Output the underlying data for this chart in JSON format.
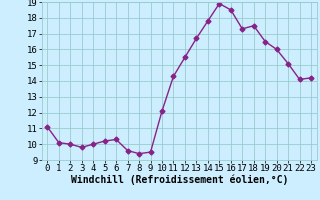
{
  "x": [
    0,
    1,
    2,
    3,
    4,
    5,
    6,
    7,
    8,
    9,
    10,
    11,
    12,
    13,
    14,
    15,
    16,
    17,
    18,
    19,
    20,
    21,
    22,
    23
  ],
  "y": [
    11.1,
    10.1,
    10.0,
    9.8,
    10.0,
    10.2,
    10.3,
    9.6,
    9.4,
    9.5,
    12.1,
    14.3,
    15.5,
    16.7,
    17.8,
    18.9,
    18.5,
    17.3,
    17.5,
    16.5,
    16.0,
    15.1,
    14.1,
    14.2
  ],
  "line_color": "#882288",
  "marker": "D",
  "marker_size": 2.5,
  "bg_color": "#cceeff",
  "grid_color": "#99cccc",
  "xlabel": "Windchill (Refroidissement éolien,°C)",
  "xlabel_fontsize": 7,
  "ylim": [
    9,
    19
  ],
  "xlim_min": -0.5,
  "xlim_max": 23.5,
  "yticks": [
    9,
    10,
    11,
    12,
    13,
    14,
    15,
    16,
    17,
    18,
    19
  ],
  "xticks": [
    0,
    1,
    2,
    3,
    4,
    5,
    6,
    7,
    8,
    9,
    10,
    11,
    12,
    13,
    14,
    15,
    16,
    17,
    18,
    19,
    20,
    21,
    22,
    23
  ],
  "tick_fontsize": 6.5,
  "line_width": 1.0
}
